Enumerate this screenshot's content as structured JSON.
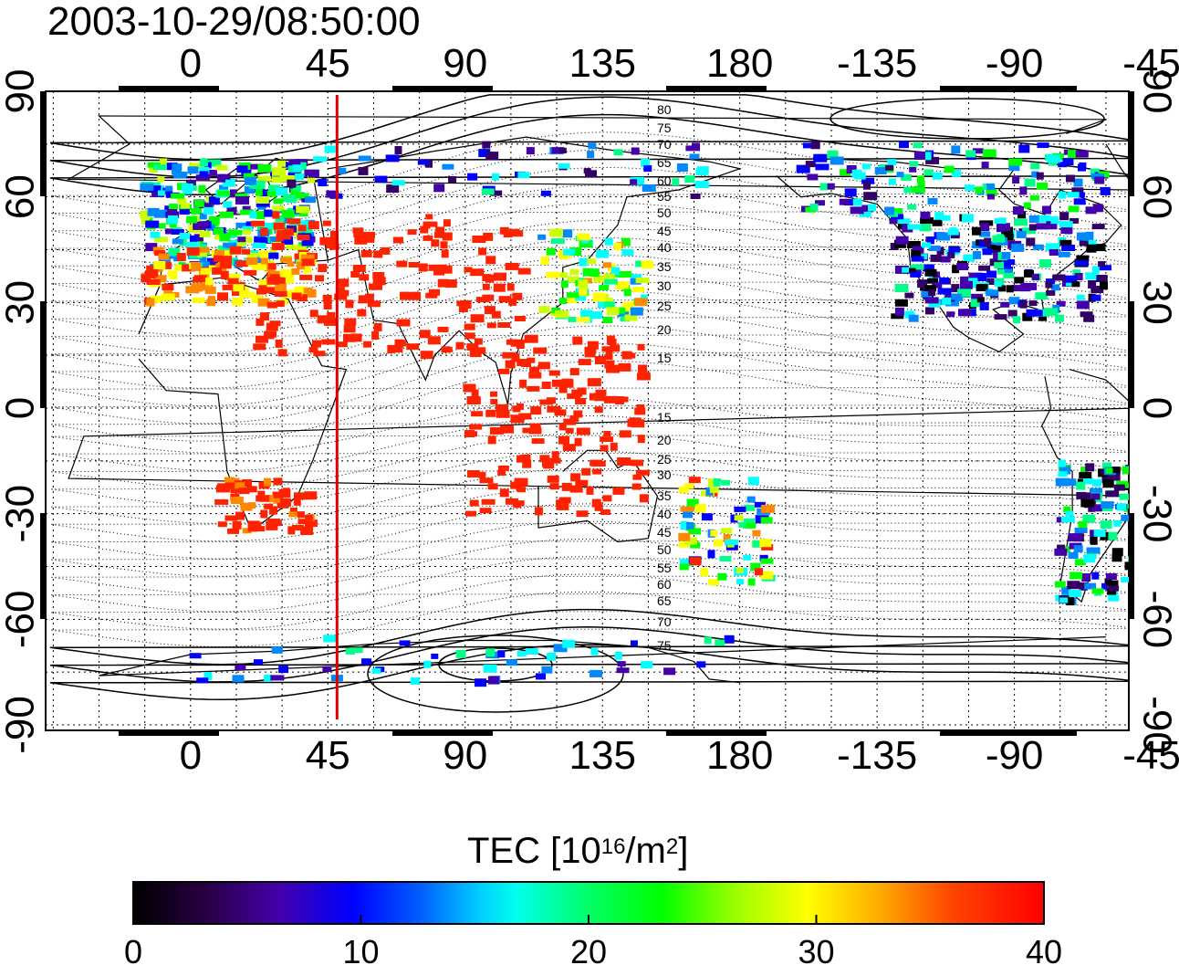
{
  "title": "2003-10-29/08:50:00",
  "map": {
    "lon_ticks_top": [
      "0",
      "45",
      "90",
      "135",
      "180",
      "-135",
      "-90",
      "-45"
    ],
    "lon_ticks_bottom": [
      "0",
      "45",
      "90",
      "135",
      "180",
      "-135",
      "-90",
      "-45"
    ],
    "lat_ticks_left": [
      "90",
      "60",
      "30",
      "0",
      "-30",
      "-60",
      "-90"
    ],
    "lat_ticks_right": [
      "90",
      "60",
      "30",
      "0",
      "-30",
      "-60",
      "-90"
    ],
    "marker_line_lon": 48,
    "marker_line_color": "#e00000",
    "contour_labels": [
      "80",
      "75",
      "70",
      "65",
      "60",
      "55",
      "50",
      "45",
      "40",
      "35",
      "30",
      "25",
      "20",
      "15",
      "15",
      "20",
      "25",
      "30",
      "35",
      "40",
      "45",
      "50",
      "55",
      "60",
      "65",
      "70",
      "75"
    ]
  },
  "colorbar": {
    "title_prefix": "TEC  [10",
    "title_exp": "16",
    "title_mid": "/m",
    "title_exp2": "2",
    "title_suffix": "]",
    "tick_labels": [
      "0",
      "10",
      "20",
      "30",
      "40"
    ],
    "range": [
      0,
      40
    ],
    "colormap": [
      "#000000",
      "#330066",
      "#4400aa",
      "#0000ff",
      "#0088ff",
      "#00ffff",
      "#00ff88",
      "#00ff00",
      "#ccff00",
      "#ffff00",
      "#ff8800",
      "#ff2200",
      "#ff0000"
    ]
  }
}
